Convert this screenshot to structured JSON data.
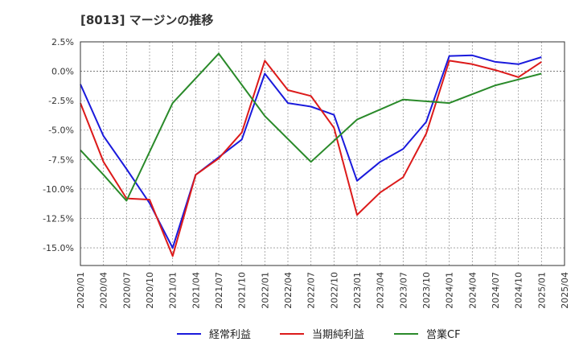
{
  "chart_data": {
    "type": "line",
    "title": "[8013]  マージンの推移",
    "x": [
      "2020/01",
      "2020/04",
      "2020/07",
      "2020/10",
      "2021/01",
      "2021/04",
      "2021/07",
      "2021/10",
      "2022/01",
      "2022/04",
      "2022/07",
      "2022/10",
      "2023/01",
      "2023/04",
      "2023/07",
      "2023/10",
      "2024/01",
      "2024/04",
      "2024/07",
      "2024/10",
      "2025/01"
    ],
    "x_tick_labels": [
      "2020/01",
      "2020/04",
      "2020/07",
      "2020/10",
      "2021/01",
      "2021/04",
      "2021/07",
      "2021/10",
      "2022/01",
      "2022/04",
      "2022/07",
      "2022/10",
      "2023/01",
      "2023/04",
      "2023/07",
      "2023/10",
      "2024/01",
      "2024/04",
      "2024/07",
      "2024/10",
      "2025/01",
      "2025/04"
    ],
    "y_tick_labels": [
      "2.5%",
      "0.0%",
      "-2.5%",
      "-5.0%",
      "-7.5%",
      "-10.0%",
      "-12.5%",
      "-15.0%"
    ],
    "y_ticks": [
      2.5,
      0,
      -2.5,
      -5,
      -7.5,
      -10,
      -12.5,
      -15
    ],
    "ylim": [
      -16.5,
      2.5
    ],
    "grid": true,
    "legend_position": "bottom",
    "series": [
      {
        "name": "経常利益",
        "color": "#1a1adc",
        "values": [
          -1.1,
          -5.5,
          -8.3,
          -11.2,
          -15.0,
          -8.8,
          -7.3,
          -5.8,
          -0.2,
          -2.7,
          -3.0,
          -3.7,
          -9.3,
          -7.7,
          -6.6,
          -4.3,
          1.3,
          1.35,
          0.8,
          0.6,
          1.2
        ]
      },
      {
        "name": "当期純利益",
        "color": "#dc1a1a",
        "values": [
          -2.7,
          -7.7,
          -10.8,
          -10.9,
          -15.7,
          -8.8,
          -7.4,
          -5.2,
          0.9,
          -1.6,
          -2.1,
          -4.8,
          -12.2,
          -10.3,
          -9.0,
          -5.3,
          0.9,
          0.6,
          0.1,
          -0.5,
          0.8
        ]
      },
      {
        "name": "営業CF",
        "color": "#2a8a2a",
        "values": [
          -6.7,
          -8.8,
          -11.0,
          null,
          -2.7,
          null,
          1.5,
          null,
          -3.8,
          null,
          -7.7,
          null,
          -4.1,
          null,
          -2.4,
          null,
          -2.7,
          null,
          -1.2,
          null,
          -0.2
        ]
      }
    ]
  }
}
